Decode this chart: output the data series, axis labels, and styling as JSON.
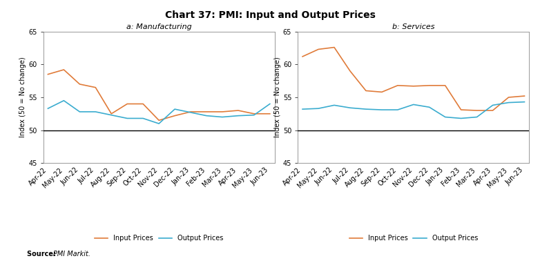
{
  "title": "Chart 37: PMI: Input and Output Prices",
  "source": "Source: PMI Markit.",
  "subplot_titles": [
    "a: Manufacturing",
    "b: Services"
  ],
  "x_labels": [
    "Apr-22",
    "May-22",
    "Jun-22",
    "Jul-22",
    "Aug-22",
    "Sep-22",
    "Oct-22",
    "Nov-22",
    "Dec-22",
    "Jan-23",
    "Feb-23",
    "Mar-23",
    "Apr-23",
    "May-23",
    "Jun-23"
  ],
  "mfg_input": [
    58.5,
    59.2,
    57.0,
    56.5,
    52.5,
    54.0,
    54.0,
    51.5,
    52.2,
    52.8,
    52.8,
    52.8,
    53.0,
    52.5,
    52.5
  ],
  "mfg_output": [
    53.3,
    54.5,
    52.8,
    52.8,
    52.3,
    51.8,
    51.8,
    51.0,
    53.2,
    52.7,
    52.2,
    52.0,
    52.2,
    52.3,
    54.0
  ],
  "svc_input": [
    61.2,
    62.3,
    62.6,
    59.0,
    56.0,
    55.8,
    56.8,
    56.7,
    56.8,
    56.8,
    53.1,
    53.0,
    53.0,
    55.0,
    55.2
  ],
  "svc_output": [
    53.2,
    53.3,
    53.8,
    53.4,
    53.2,
    53.1,
    53.1,
    53.9,
    53.5,
    52.0,
    51.8,
    52.0,
    53.8,
    54.2,
    54.3
  ],
  "input_color": "#E07B39",
  "output_color": "#3AACCF",
  "ylim": [
    45,
    65
  ],
  "yticks": [
    45,
    50,
    55,
    60,
    65
  ],
  "ylabel": "Index (50 = No change)",
  "legend_input": "Input Prices",
  "legend_output": "Output Prices",
  "bg_color": "#ffffff",
  "panel_bg": "#ffffff",
  "title_fontsize": 10,
  "tick_fontsize": 7,
  "label_fontsize": 7,
  "legend_fontsize": 7,
  "subtitle_fontsize": 8
}
